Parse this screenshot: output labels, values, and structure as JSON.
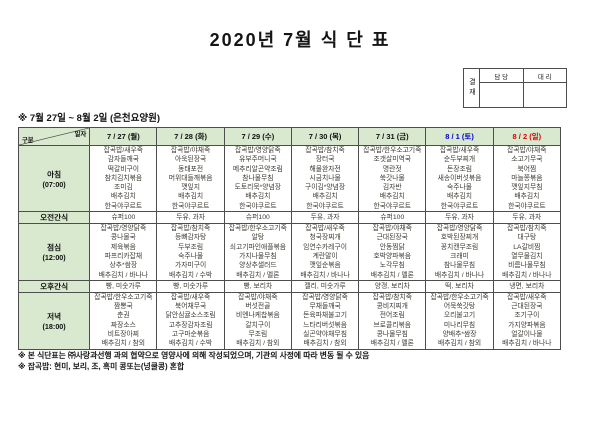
{
  "title": "2020년 7월 식 단 표",
  "approval": {
    "sign_label": "결재",
    "columns": [
      "담 당",
      "대 리"
    ]
  },
  "subtitle": "※ 7월 27일 ~ 8월 2일 (은천요양원)",
  "colors": {
    "header_bg": "#d9e9cf",
    "weekday": "#101010",
    "saturday": "#0000cc",
    "sunday": "#dd0000",
    "border": "#4d4d4d"
  },
  "table": {
    "corner": {
      "top": "일자",
      "bottom": "구분"
    },
    "days": [
      {
        "label": "7 / 27 (월)",
        "type": "weekday"
      },
      {
        "label": "7 / 28 (화)",
        "type": "weekday"
      },
      {
        "label": "7 / 29 (수)",
        "type": "weekday"
      },
      {
        "label": "7 / 30 (목)",
        "type": "weekday"
      },
      {
        "label": "7 / 31 (금)",
        "type": "weekday"
      },
      {
        "label": "8 / 1 (토)",
        "type": "saturday"
      },
      {
        "label": "8 / 2 (일)",
        "type": "sunday"
      }
    ],
    "rows": [
      {
        "id": "breakfast",
        "label": "아침",
        "time": "(07:00)",
        "kind": "meal",
        "cells": [
          [
            "잡곡밥/새우죽",
            "감자들깨국",
            "떡갈비구이",
            "참치김치볶음",
            "조미김",
            "배추김치",
            "한국야쿠르트"
          ],
          [
            "잡곡밥/야채죽",
            "아욱된장국",
            "동태포전",
            "머위대들깨볶음",
            "깻잎지",
            "배추김치",
            "한국야쿠르트"
          ],
          [
            "잡곡밥/영양닭죽",
            "유부주머니국",
            "메추리알곤약조림",
            "참나물무침",
            "도토리묵*양념장",
            "배추김치",
            "한국야쿠르트"
          ],
          [
            "잡곡밥/참치죽",
            "장터국",
            "해물완자전",
            "시금치나물",
            "구이김*양념장",
            "배추김치",
            "한국야쿠르트"
          ],
          [
            "잡곡밥/한우소고기죽",
            "조갯살미역국",
            "명란젓",
            "쑥갓나물",
            "김자반",
            "배추김치",
            "한국야쿠르트"
          ],
          [
            "잡곡밥/새우죽",
            "순두부찌개",
            "돈장조림",
            "새송이버섯볶음",
            "숙주나물",
            "배추김치",
            "한국야쿠르트"
          ],
          [
            "잡곡밥/야채죽",
            "소고기무국",
            "북어찜",
            "마늘쫑볶음",
            "깻잎지무침",
            "배추김치",
            "한국야쿠르트"
          ]
        ]
      },
      {
        "id": "am-snack",
        "label": "오전간식",
        "time": "",
        "kind": "snack",
        "cells": [
          [
            "슈퍼100"
          ],
          [
            "두유, 과자"
          ],
          [
            "슈퍼100"
          ],
          [
            "두유, 과자"
          ],
          [
            "슈퍼100"
          ],
          [
            "두유, 과자"
          ],
          [
            "두유, 과자"
          ]
        ]
      },
      {
        "id": "lunch",
        "label": "점심",
        "time": "(12:00)",
        "kind": "meal",
        "cells": [
          [
            "잡곡밥/영양닭죽",
            "콩나물국",
            "제육볶음",
            "파프리카잡채",
            "상추*쌈장",
            "배추김치 / 바나나"
          ],
          [
            "잡곡밥/참치죽",
            "등뼈감자탕",
            "두부조림",
            "숙주나물",
            "가자미구이",
            "배추김치 / 수박"
          ],
          [
            "잡곡밥/한우소고기죽",
            "알탕",
            "쇠고기파인애플볶음",
            "가지나물무침",
            "양상추샐러드",
            "배추김치 / 멜론"
          ],
          [
            "잡곡밥/새우죽",
            "청국장찌개",
            "임연수카레구이",
            "계란말이",
            "깻잎순볶음",
            "배추김치 / 바나나"
          ],
          [
            "잡곡밥/야채죽",
            "근대된장국",
            "안동찜닭",
            "호박양파볶음",
            "노각무침",
            "배추김치 / 멜론"
          ],
          [
            "잡곡밥/영양닭죽",
            "호박된장찌개",
            "꽁치캔무조림",
            "크래미",
            "참나물무침",
            "배추김치 / 바나나"
          ],
          [
            "잡곡밥/참치죽",
            "대구탕",
            "LA갈비찜",
            "열무물김치",
            "비름나물무침",
            "배추김치 / 바나나"
          ]
        ]
      },
      {
        "id": "pm-snack",
        "label": "오후간식",
        "time": "",
        "kind": "snack",
        "cells": [
          [
            "빵, 미숫가루"
          ],
          [
            "빵, 미숫가루"
          ],
          [
            "빵, 보리차"
          ],
          [
            "젤리, 미숫가루"
          ],
          [
            "양갱, 보리차"
          ],
          [
            "떡, 보리차"
          ],
          [
            "냉면, 보리차"
          ]
        ]
      },
      {
        "id": "dinner",
        "label": "저녁",
        "time": "(18:00)",
        "kind": "meal",
        "cells": [
          [
            "잡곡밥/한우소고기죽",
            "짬뽕국",
            "춘권",
            "짜장소스",
            "비트장아찌",
            "배추김치 / 참외"
          ],
          [
            "잡곡밥/새우죽",
            "북어채무국",
            "닭안심귤소스조림",
            "고추장감자조림",
            "고구마순볶음",
            "배추김치 / 수박"
          ],
          [
            "잡곡밥/야채죽",
            "버섯전골",
            "비엔나케찹볶음",
            "갈치구이",
            "무조림",
            "배추김치 / 참외"
          ],
          [
            "잡곡밥/영양닭죽",
            "무채들깨국",
            "돈육파채불고기",
            "느타리버섯볶음",
            "실곤약야채무침",
            "배추김치 / 참외"
          ],
          [
            "잡곡밥/참치죽",
            "콩비지찌개",
            "전어조림",
            "브로콜리볶음",
            "콩나물무침",
            "배추김치 / 멜론"
          ],
          [
            "잡곡밥/한우소고기죽",
            "어묵쑥갓탕",
            "오리불고기",
            "미나리무침",
            "양배추*쌈장",
            "배추김치 / 참외"
          ],
          [
            "잡곡밥/새우죽",
            "근대된장국",
            "조기구이",
            "가지양파볶음",
            "얼갈이나물",
            "배추김치 / 바나나"
          ]
        ]
      }
    ]
  },
  "notes": [
    "※ 본 식단표는 ㈜사랑과선행 과의 협약으로 영양사에 의해 작성되었으며, 기관의 사정에 따라 변동 될 수 있음",
    "※ 잡곡밥: 현미, 보리, 조, 흑미 콩또는(넝쿨콩) 혼합"
  ]
}
